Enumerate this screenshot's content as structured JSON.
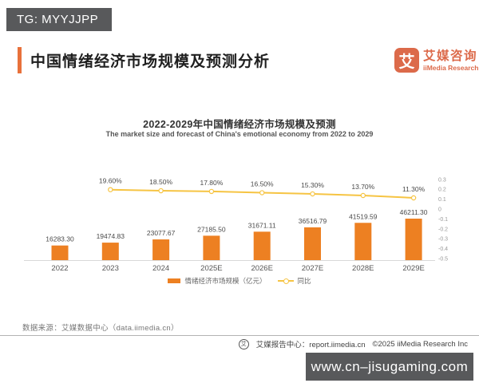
{
  "watermark_top": {
    "label": "TG: MYYJJPP"
  },
  "watermark_bottom": {
    "label": "www.cn–jisugaming.com"
  },
  "header": {
    "title": "中国情绪经济市场规模及预测分析",
    "logo": {
      "symbol": "艾",
      "name_cn": "艾媒咨询",
      "name_en": "iiMedia Research"
    }
  },
  "chart": {
    "title": "2022-2029年中国情绪经济市场规模及预测",
    "subtitle": "The market size and forecast of China's emotional economy from 2022 to 2029",
    "legend": [
      {
        "label": "情绪经济市场规模（亿元）",
        "type": "bar"
      },
      {
        "label": "同比",
        "type": "line"
      }
    ]
  },
  "chart_data": {
    "type": "bar+line",
    "categories": [
      "2022",
      "2023",
      "2024",
      "2025E",
      "2026E",
      "2027E",
      "2028E",
      "2029E"
    ],
    "series": [
      {
        "name": "情绪经济市场规模（亿元）",
        "type": "bar",
        "color": "#ED8022",
        "values": [
          16283.3,
          19474.83,
          23077.67,
          27185.5,
          31671.11,
          36516.79,
          41519.59,
          46211.3
        ]
      },
      {
        "name": "同比",
        "type": "line",
        "color": "#F6C443",
        "values": [
          null,
          0.196,
          0.185,
          0.178,
          0.165,
          0.153,
          0.137,
          0.113
        ],
        "labels": [
          null,
          "19.60%",
          "18.50%",
          "17.80%",
          "16.50%",
          "15.30%",
          "13.70%",
          "11.30%"
        ]
      }
    ],
    "value_labels": [
      "16283.30",
      "19474.83",
      "23077.67",
      "27185.50",
      "31671.11",
      "36516.79",
      "41519.59",
      "46211.30"
    ],
    "right_axis": {
      "ticks": [
        "0.3",
        "0.2",
        "0.1",
        "0",
        "-0.1",
        "-0.2",
        "-0.3",
        "-0.4",
        "-0.5"
      ],
      "min": -0.5,
      "max": 0.3
    },
    "title": "2022-2029年中国情绪经济市场规模及预测",
    "xlabel": "",
    "ylabel": "",
    "grid": false,
    "legend_position": "bottom"
  },
  "footer": {
    "source": "数据来源：艾媒数据中心（data.iimedia.cn）",
    "icon_symbol": "艾",
    "report_center": "艾媒报告中心：report.iimedia.cn",
    "copyright": "©2025  iiMedia Research  Inc"
  },
  "colors": {
    "accent_bar": "#E8713B",
    "bar_series": "#ED8022",
    "line_series": "#F6C443",
    "logo_orange": "#DC6A4A",
    "watermark_bg": "#58595B"
  }
}
